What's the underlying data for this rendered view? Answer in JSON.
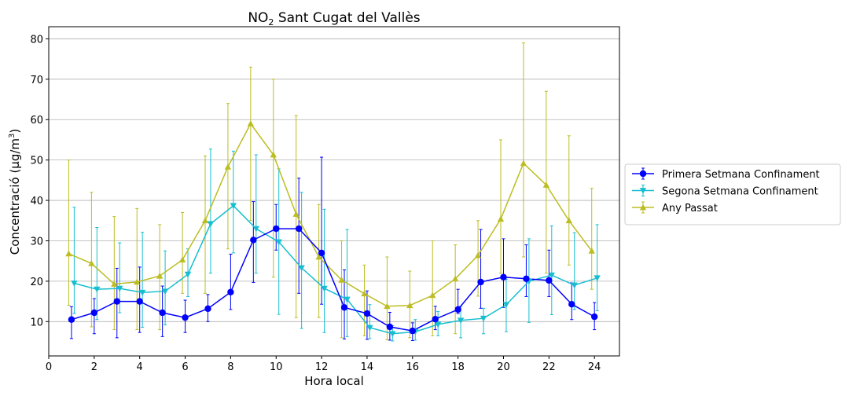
{
  "chart_data": {
    "type": "line",
    "title": "NO",
    "title_sub": "2",
    "title_rest": " Sant Cugat del Vallès",
    "xlabel": "Hora local",
    "ylabel": "Concentració (µg/m",
    "ylabel_sup": "3",
    "ylabel_end": ")",
    "xlim": [
      0,
      25.1
    ],
    "ylim": [
      1.5,
      83
    ],
    "x_ticks": [
      0,
      2,
      4,
      6,
      8,
      10,
      12,
      14,
      16,
      18,
      20,
      22,
      24
    ],
    "y_ticks": [
      10,
      20,
      30,
      40,
      50,
      60,
      70,
      80
    ],
    "grid": "horizontal",
    "legend_position": "right",
    "x": [
      1,
      2,
      3,
      4,
      5,
      6,
      7,
      8,
      9,
      10,
      11,
      12,
      13,
      14,
      15,
      16,
      17,
      18,
      19,
      20,
      21,
      22,
      23,
      24
    ],
    "series": [
      {
        "name": "Primera Setmana Confinament",
        "color": "#0000ff",
        "marker": "circle",
        "x_offset": 0,
        "values": [
          10.5,
          12.2,
          15,
          15,
          12.2,
          11,
          13.2,
          17.3,
          30.2,
          33,
          33,
          27,
          13.5,
          12,
          8.7,
          7.7,
          10.6,
          13,
          19.8,
          21,
          20.6,
          20.2,
          14.3,
          11.2
        ],
        "lower": [
          5.8,
          7,
          6,
          7.3,
          6.3,
          7.3,
          10,
          13,
          19.7,
          27.7,
          17,
          14.3,
          5.7,
          5.6,
          5.4,
          5.3,
          8,
          12,
          13.3,
          13.5,
          16.2,
          16.2,
          10.5,
          8
        ],
        "upper": [
          13.7,
          15.7,
          23.2,
          23.5,
          18.8,
          15.3,
          16.7,
          26.7,
          39.7,
          39,
          45.5,
          50.7,
          22.8,
          17.6,
          12.3,
          9.7,
          13.8,
          18,
          32.8,
          30.5,
          29,
          27.7,
          19.6,
          14.7
        ]
      },
      {
        "name": "Segona Setmana Confinament",
        "color": "#17becf",
        "marker": "triangle-down",
        "x_offset": 0.12,
        "values": [
          19.5,
          18,
          18.2,
          17.2,
          17.5,
          21.7,
          34.2,
          38.7,
          33,
          29.7,
          23.3,
          18.2,
          15.5,
          8.5,
          7,
          7.5,
          9.3,
          10.3,
          10.8,
          14.2,
          20,
          21.5,
          19,
          20.8
        ],
        "lower": [
          12,
          10.5,
          12.2,
          8.6,
          9.2,
          16.2,
          22,
          27,
          22,
          11.8,
          8.3,
          7.3,
          6.3,
          5.8,
          5.2,
          5.4,
          6.5,
          6,
          7,
          7.5,
          9.8,
          11.7,
          13,
          12.7
        ],
        "upper": [
          38.3,
          33.3,
          29.5,
          32.1,
          27.5,
          28,
          52.7,
          52.2,
          51.3,
          47.8,
          42,
          37.8,
          32.8,
          14.2,
          9,
          10.5,
          12.5,
          13.8,
          13.3,
          20.5,
          30.5,
          33.7,
          32,
          34
        ]
      },
      {
        "name": "Any Passat",
        "color": "#bcbd22",
        "marker": "triangle-up",
        "x_offset": -0.12,
        "values": [
          26.8,
          24.4,
          19.3,
          19.8,
          21.3,
          25.3,
          35,
          48.3,
          59,
          51.3,
          36.6,
          26,
          20.3,
          16.9,
          13.8,
          14,
          16.5,
          20.6,
          26.4,
          35.4,
          49.2,
          43.8,
          35,
          27.5
        ],
        "lower": [
          14,
          8.7,
          8,
          8,
          8,
          17,
          17,
          28,
          35,
          21,
          11,
          11,
          6,
          6.5,
          5.5,
          6,
          6.5,
          7,
          16.3,
          22,
          26,
          22,
          24,
          18
        ],
        "upper": [
          50,
          42,
          36,
          38,
          34,
          37,
          51,
          64,
          73,
          70,
          61,
          39,
          30,
          24,
          26,
          22.5,
          30,
          29,
          35,
          55,
          79,
          67,
          56,
          43
        ]
      }
    ]
  }
}
